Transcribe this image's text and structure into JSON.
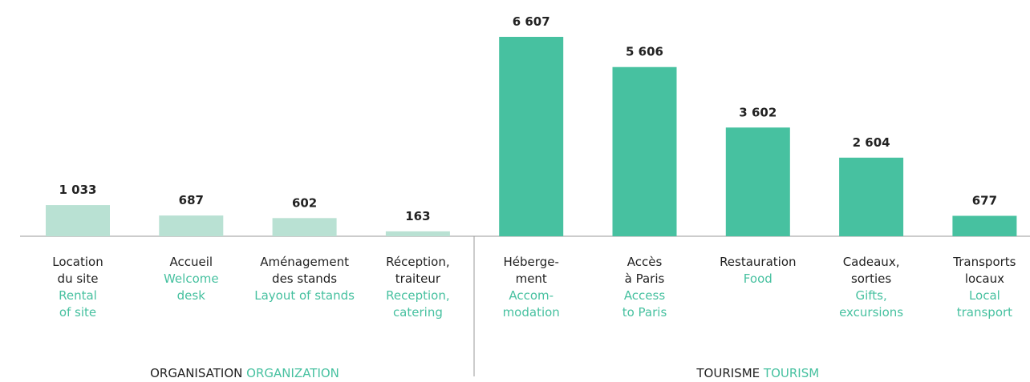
{
  "chart_data": {
    "type": "bar",
    "series": [
      {
        "name": "ORGANISATION",
        "name_en": "ORGANIZATION",
        "color": "#b9e1d3",
        "categories": [
          {
            "fr": [
              "Location",
              "du site"
            ],
            "en": [
              "Rental",
              "of site"
            ]
          },
          {
            "fr": [
              "Accueil"
            ],
            "en": [
              "Welcome",
              "desk"
            ]
          },
          {
            "fr": [
              "Aménagement",
              "des stands"
            ],
            "en": [
              "Layout of stands"
            ]
          },
          {
            "fr": [
              "Réception,",
              "traiteur"
            ],
            "en": [
              "Reception,",
              "catering"
            ]
          }
        ],
        "values": [
          1033,
          687,
          602,
          163
        ],
        "value_labels": [
          "1 033",
          "687",
          "602",
          "163"
        ]
      },
      {
        "name": "TOURISME",
        "name_en": "TOURISM",
        "color": "#47c1a0",
        "categories": [
          {
            "fr": [
              "Héberge-",
              "ment"
            ],
            "en": [
              "Accom-",
              "modation"
            ]
          },
          {
            "fr": [
              "Accès",
              "à Paris"
            ],
            "en": [
              "Access",
              "to Paris"
            ]
          },
          {
            "fr": [
              "Restauration"
            ],
            "en": [
              "Food"
            ]
          },
          {
            "fr": [
              "Cadeaux,",
              "sorties"
            ],
            "en": [
              "Gifts,",
              "excursions"
            ]
          },
          {
            "fr": [
              "Transports",
              "locaux"
            ],
            "en": [
              "Local",
              "transport"
            ]
          }
        ],
        "values": [
          6607,
          5606,
          3602,
          2604,
          677
        ],
        "value_labels": [
          "6 607",
          "5 606",
          "3 602",
          "2 604",
          "677"
        ]
      }
    ]
  }
}
